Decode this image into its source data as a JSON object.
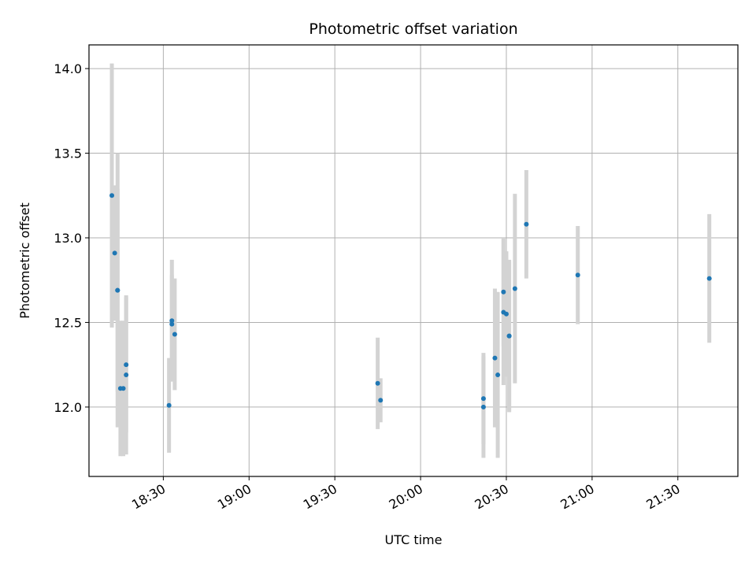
{
  "chart_data": {
    "type": "scatter",
    "title": "Photometric offset variation",
    "xlabel": "UTC time",
    "ylabel": "Photometric offset",
    "x_ticks": [
      "18:30",
      "19:00",
      "19:30",
      "20:00",
      "20:30",
      "21:00",
      "21:30"
    ],
    "y_ticks": [
      "12.0",
      "12.5",
      "13.0",
      "13.5",
      "14.0"
    ],
    "xlim": [
      "18:04",
      "21:51"
    ],
    "ylim": [
      11.59,
      14.14
    ],
    "grid": true,
    "colors": {
      "point": "#1f77b4",
      "errorbar": "#d3d3d3",
      "grid": "#b0b0b0"
    },
    "points": [
      {
        "x": "18:12",
        "y": 13.25,
        "err": 0.78
      },
      {
        "x": "18:13",
        "y": 12.91,
        "err": 0.4
      },
      {
        "x": "18:14",
        "y": 12.69,
        "err": 0.81
      },
      {
        "x": "18:14",
        "y": 12.69,
        "err": 0.6
      },
      {
        "x": "18:15",
        "y": 12.11,
        "err": 0.4
      },
      {
        "x": "18:16",
        "y": 12.11,
        "err": 0.4
      },
      {
        "x": "18:17",
        "y": 12.19,
        "err": 0.47
      },
      {
        "x": "18:17",
        "y": 12.25,
        "err": 0.4
      },
      {
        "x": "18:32",
        "y": 12.01,
        "err": 0.28
      },
      {
        "x": "18:33",
        "y": 12.49,
        "err": 0.29
      },
      {
        "x": "18:33",
        "y": 12.51,
        "err": 0.36
      },
      {
        "x": "18:34",
        "y": 12.43,
        "err": 0.33
      },
      {
        "x": "19:45",
        "y": 12.14,
        "err": 0.27
      },
      {
        "x": "19:46",
        "y": 12.04,
        "err": 0.13
      },
      {
        "x": "20:22",
        "y": 12.0,
        "err": 0.3
      },
      {
        "x": "20:22",
        "y": 12.05,
        "err": 0.27
      },
      {
        "x": "20:26",
        "y": 12.29,
        "err": 0.41
      },
      {
        "x": "20:27",
        "y": 12.19,
        "err": 0.49
      },
      {
        "x": "20:29",
        "y": 12.68,
        "err": 0.32
      },
      {
        "x": "20:29",
        "y": 12.56,
        "err": 0.43
      },
      {
        "x": "20:30",
        "y": 12.55,
        "err": 0.37
      },
      {
        "x": "20:31",
        "y": 12.42,
        "err": 0.44
      },
      {
        "x": "20:31",
        "y": 12.42,
        "err": 0.45
      },
      {
        "x": "20:33",
        "y": 12.7,
        "err": 0.56
      },
      {
        "x": "20:37",
        "y": 13.08,
        "err": 0.32
      },
      {
        "x": "20:55",
        "y": 12.78,
        "err": 0.29
      },
      {
        "x": "21:41",
        "y": 12.76,
        "err": 0.38
      }
    ]
  }
}
